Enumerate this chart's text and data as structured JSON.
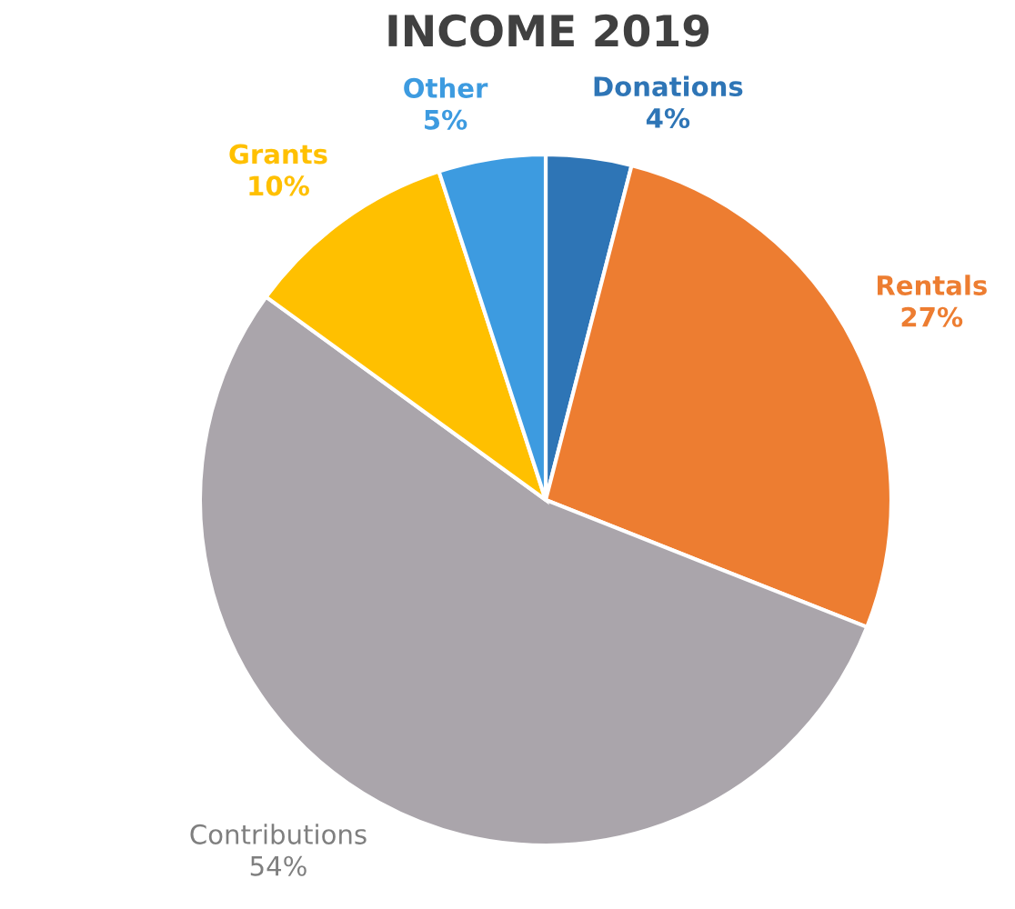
{
  "chart_data": {
    "type": "pie",
    "title": "INCOME 2019",
    "categories": [
      "Donations",
      "Rentals",
      "Contributions",
      "Grants",
      "Other"
    ],
    "values": [
      4,
      27,
      54,
      10,
      5
    ],
    "value_labels": [
      "4%",
      "27%",
      "54%",
      "10%",
      "5%"
    ],
    "colors": [
      "#2e75b6",
      "#ed7d31",
      "#aaa5ab",
      "#ffc000",
      "#3d9be0"
    ],
    "legend": false
  }
}
